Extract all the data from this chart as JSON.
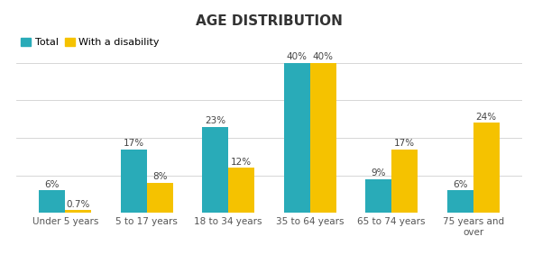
{
  "title": "AGE DISTRIBUTION",
  "categories": [
    "Under 5 years",
    "5 to 17 years",
    "18 to 34 years",
    "35 to 64 years",
    "65 to 74 years",
    "75 years and\nover"
  ],
  "total": [
    6,
    17,
    23,
    40,
    9,
    6
  ],
  "disability": [
    0.7,
    8,
    12,
    40,
    17,
    24
  ],
  "total_labels": [
    "6%",
    "17%",
    "23%",
    "40%",
    "9%",
    "6%"
  ],
  "disability_labels": [
    "0.7%",
    "8%",
    "12%",
    "40%",
    "17%",
    "24%"
  ],
  "color_total": "#29ABB8",
  "color_disability": "#F5C200",
  "background_color": "#FFFFFF",
  "legend_labels": [
    "Total",
    "With a disability"
  ],
  "ylim": [
    0,
    48
  ],
  "bar_width": 0.32,
  "title_fontsize": 11,
  "label_fontsize": 7.5,
  "tick_fontsize": 7.5,
  "legend_fontsize": 8
}
